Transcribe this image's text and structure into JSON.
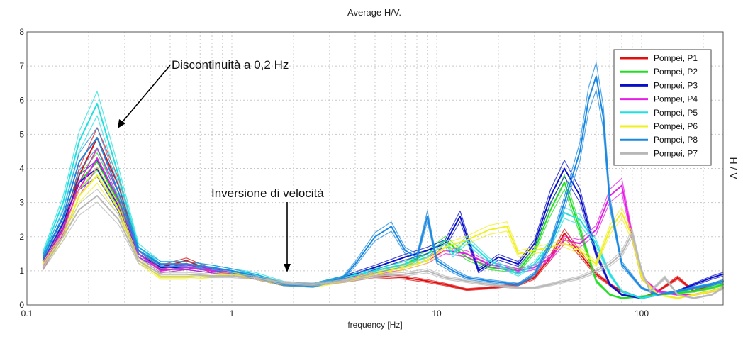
{
  "chart_data": {
    "type": "line",
    "title": "Average H/V.",
    "xlabel": "frequency [Hz]",
    "ylabel": "H / V",
    "xscale": "log",
    "xlim": [
      0.1,
      250
    ],
    "ylim": [
      0,
      8
    ],
    "xticks": [
      {
        "value": 0.1,
        "label": "0.1"
      },
      {
        "value": 1,
        "label": "1"
      },
      {
        "value": 10,
        "label": "10"
      },
      {
        "value": 100,
        "label": "100"
      }
    ],
    "yticks": [
      0,
      1,
      2,
      3,
      4,
      5,
      6,
      7,
      8
    ],
    "grid": true,
    "legend_position": "top-right",
    "series": [
      {
        "name": "Pompei, P1",
        "color": "#e01010",
        "x": [
          0.12,
          0.15,
          0.18,
          0.22,
          0.28,
          0.35,
          0.45,
          0.6,
          0.8,
          1.0,
          1.3,
          1.8,
          2.5,
          3.5,
          5,
          7,
          9,
          11,
          14,
          18,
          25,
          30,
          36,
          42,
          50,
          60,
          70,
          80,
          100,
          120,
          150,
          180,
          220,
          250
        ],
        "y": [
          1.1,
          2.2,
          3.8,
          4.9,
          3.5,
          1.6,
          1.1,
          1.3,
          1.0,
          0.9,
          0.8,
          0.6,
          0.6,
          0.7,
          0.85,
          0.8,
          0.7,
          0.6,
          0.45,
          0.5,
          0.6,
          0.8,
          1.4,
          2.1,
          1.5,
          0.9,
          0.6,
          0.4,
          0.2,
          0.4,
          0.8,
          0.4,
          0.6,
          0.7
        ]
      },
      {
        "name": "Pompei, P2",
        "color": "#22dd22",
        "x": [
          0.12,
          0.15,
          0.18,
          0.22,
          0.28,
          0.35,
          0.45,
          0.6,
          0.8,
          1.0,
          1.3,
          1.8,
          2.5,
          3.5,
          5,
          7,
          9,
          11,
          14,
          18,
          25,
          30,
          36,
          42,
          50,
          60,
          70,
          80,
          100,
          120,
          150,
          180,
          220,
          250
        ],
        "y": [
          1.3,
          2.4,
          3.6,
          4.2,
          3.0,
          1.5,
          1.0,
          1.1,
          1.0,
          0.95,
          0.8,
          0.6,
          0.6,
          0.8,
          1.0,
          1.2,
          1.5,
          1.9,
          1.4,
          1.1,
          1.0,
          1.6,
          2.8,
          3.6,
          2.2,
          0.7,
          0.3,
          0.2,
          0.25,
          0.3,
          0.35,
          0.4,
          0.5,
          0.6
        ]
      },
      {
        "name": "Pompei, P3",
        "color": "#0a10c8",
        "x": [
          0.12,
          0.15,
          0.18,
          0.22,
          0.28,
          0.35,
          0.45,
          0.6,
          0.8,
          1.0,
          1.3,
          1.8,
          2.5,
          3.5,
          5,
          7,
          9,
          11,
          13,
          16,
          20,
          25,
          30,
          36,
          42,
          50,
          60,
          70,
          80,
          100,
          120,
          150,
          180,
          220,
          250
        ],
        "y": [
          1.3,
          2.4,
          3.6,
          4.0,
          2.9,
          1.5,
          1.1,
          1.1,
          1.0,
          0.95,
          0.8,
          0.6,
          0.6,
          0.8,
          1.1,
          1.4,
          1.6,
          1.8,
          2.6,
          1.0,
          1.4,
          1.2,
          1.8,
          3.2,
          4.0,
          3.2,
          1.5,
          0.6,
          0.3,
          0.2,
          0.3,
          0.4,
          0.6,
          0.8,
          0.9
        ]
      },
      {
        "name": "Pompei, P4",
        "color": "#e51ee5",
        "x": [
          0.12,
          0.15,
          0.18,
          0.22,
          0.28,
          0.35,
          0.45,
          0.6,
          0.8,
          1.0,
          1.3,
          1.8,
          2.5,
          3.5,
          5,
          7,
          9,
          11,
          14,
          18,
          25,
          30,
          36,
          42,
          50,
          60,
          70,
          80,
          90,
          100,
          120,
          150,
          180,
          220,
          250
        ],
        "y": [
          1.2,
          2.2,
          3.4,
          4.3,
          3.1,
          1.5,
          1.0,
          1.1,
          1.0,
          0.9,
          0.8,
          0.6,
          0.6,
          0.75,
          0.95,
          1.1,
          1.3,
          1.6,
          1.5,
          1.2,
          1.0,
          1.1,
          1.4,
          1.9,
          1.8,
          2.2,
          3.2,
          3.5,
          2.0,
          0.8,
          0.4,
          0.3,
          0.3,
          0.4,
          0.5
        ]
      },
      {
        "name": "Pompei, P5",
        "color": "#22e0e0",
        "x": [
          0.12,
          0.15,
          0.18,
          0.22,
          0.28,
          0.35,
          0.45,
          0.6,
          0.8,
          1.0,
          1.3,
          1.8,
          2.5,
          3.5,
          5,
          7,
          9,
          11,
          12,
          14,
          18,
          25,
          30,
          36,
          42,
          50,
          60,
          70,
          80,
          100,
          120,
          150,
          180,
          220,
          250
        ],
        "y": [
          1.5,
          3.0,
          4.8,
          5.9,
          3.8,
          1.7,
          1.2,
          1.2,
          1.1,
          1.0,
          0.9,
          0.65,
          0.6,
          0.8,
          1.0,
          1.2,
          1.4,
          1.8,
          1.5,
          1.9,
          1.3,
          0.9,
          1.2,
          1.8,
          2.7,
          2.5,
          1.8,
          0.9,
          0.4,
          0.2,
          0.3,
          0.4,
          0.5,
          0.6,
          0.7
        ]
      },
      {
        "name": "Pompei, P6",
        "color": "#f0f020",
        "x": [
          0.12,
          0.15,
          0.18,
          0.22,
          0.28,
          0.35,
          0.45,
          0.6,
          0.8,
          1.0,
          1.3,
          1.8,
          2.5,
          3.5,
          5,
          7,
          9,
          11,
          14,
          18,
          22,
          25,
          30,
          36,
          42,
          50,
          60,
          70,
          80,
          90,
          100,
          120,
          150,
          180,
          220,
          250
        ],
        "y": [
          1.2,
          2.0,
          3.2,
          3.8,
          2.8,
          1.3,
          0.8,
          0.8,
          0.85,
          0.9,
          0.8,
          0.6,
          0.55,
          0.7,
          0.9,
          1.1,
          1.3,
          1.7,
          1.9,
          2.2,
          2.3,
          1.5,
          1.6,
          1.7,
          1.8,
          1.6,
          1.2,
          2.2,
          2.7,
          2.0,
          0.8,
          0.3,
          0.2,
          0.3,
          0.4,
          0.5
        ]
      },
      {
        "name": "Pompei, P8",
        "color": "#1a88e0",
        "x": [
          0.12,
          0.15,
          0.18,
          0.22,
          0.28,
          0.35,
          0.45,
          0.6,
          0.8,
          1.0,
          1.3,
          1.8,
          2.5,
          3.5,
          4,
          5,
          6,
          7,
          8,
          9,
          10,
          12,
          14,
          18,
          25,
          30,
          36,
          42,
          50,
          55,
          60,
          65,
          70,
          80,
          100,
          120,
          150,
          180,
          220,
          250
        ],
        "y": [
          1.4,
          2.6,
          4.2,
          4.9,
          3.3,
          1.6,
          1.2,
          1.2,
          1.1,
          1.0,
          0.85,
          0.6,
          0.55,
          0.8,
          1.2,
          2.0,
          2.3,
          1.6,
          1.4,
          2.6,
          1.3,
          1.0,
          0.8,
          0.7,
          0.6,
          0.9,
          1.8,
          3.0,
          4.5,
          6.0,
          6.7,
          5.5,
          3.0,
          1.2,
          0.5,
          0.3,
          0.4,
          0.5,
          0.6,
          0.7
        ]
      },
      {
        "name": "Pompei, P7",
        "color": "#b8b8b8",
        "x": [
          0.12,
          0.15,
          0.18,
          0.22,
          0.28,
          0.35,
          0.45,
          0.6,
          0.8,
          1.0,
          1.3,
          1.8,
          2.5,
          3.5,
          5,
          7,
          9,
          11,
          14,
          18,
          25,
          30,
          36,
          42,
          50,
          60,
          70,
          80,
          90,
          100,
          110,
          130,
          150,
          180,
          220,
          250
        ],
        "y": [
          1.1,
          2.0,
          2.8,
          3.2,
          2.5,
          1.3,
          0.9,
          0.9,
          0.85,
          0.85,
          0.8,
          0.65,
          0.6,
          0.7,
          0.85,
          0.9,
          1.0,
          0.8,
          0.7,
          0.6,
          0.5,
          0.5,
          0.6,
          0.7,
          0.8,
          1.0,
          1.2,
          1.5,
          2.1,
          1.0,
          0.4,
          0.8,
          0.3,
          0.2,
          0.3,
          0.5
        ]
      }
    ],
    "annotations": [
      {
        "text": "Discontinuità a 0,2 Hz",
        "arrow_to_x": 0.25,
        "arrow_to_y": 5.2
      },
      {
        "text": "Inversione di velocità",
        "arrow_to_x": 1.75,
        "arrow_to_y": 0.9
      }
    ]
  }
}
